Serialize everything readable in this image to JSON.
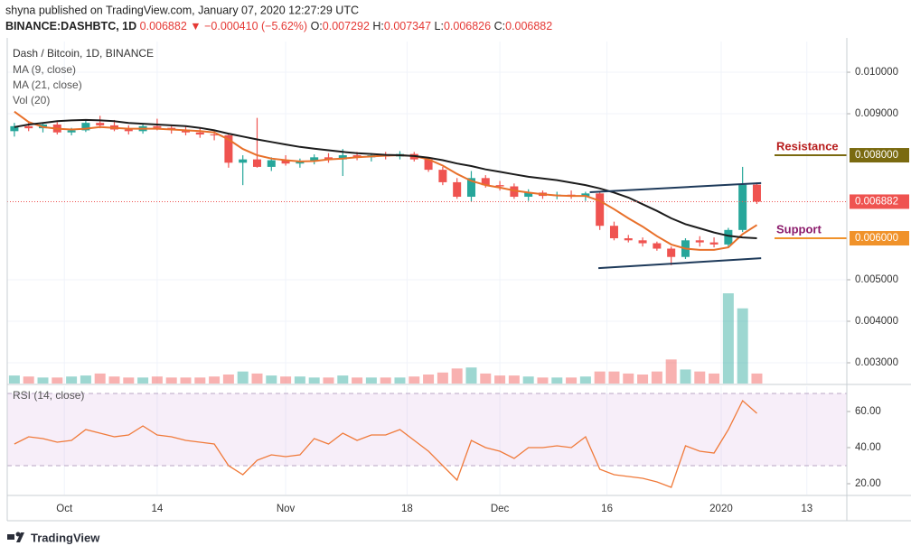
{
  "header": {
    "publisher": "shyna published on TradingView.com, January 07, 2020 12:27:29 UTC",
    "symbol": "BINANCE:DASHBTC, 1D",
    "quote": "0.006882 ▼ −0.000410 (−5.62%)",
    "ohlc": [
      [
        "O:",
        "0.007292"
      ],
      [
        "H:",
        "0.007347"
      ],
      [
        "L:",
        "0.006826"
      ],
      [
        "C:",
        "0.006882"
      ]
    ]
  },
  "footer": "TradingView",
  "chart_data": {
    "type": "candlestick",
    "title": "Dash / Bitcoin, 1D, BINANCE",
    "up_color": "#26a69a",
    "down_color": "#ef5350",
    "open": [
      0.00858,
      0.0087,
      0.00865,
      0.00874,
      0.00855,
      0.0086,
      0.00878,
      0.00872,
      0.00862,
      0.00858,
      0.0087,
      0.00866,
      0.00862,
      0.00855,
      0.0085,
      0.00848,
      0.00782,
      0.0079,
      0.00772,
      0.00788,
      0.0078,
      0.00785,
      0.00795,
      0.0079,
      0.008,
      0.00795,
      0.008,
      0.00797,
      0.00803,
      0.0079,
      0.00765,
      0.00735,
      0.007,
      0.00745,
      0.00728,
      0.00725,
      0.007,
      0.0071,
      0.00702,
      0.00705,
      0.007,
      0.00708,
      0.0063,
      0.006,
      0.00595,
      0.00588,
      0.00575,
      0.00555,
      0.00595,
      0.0059,
      0.00585,
      0.0062,
      0.007292
    ],
    "high": [
      0.00878,
      0.0088,
      0.00878,
      0.0088,
      0.00866,
      0.00885,
      0.00895,
      0.00885,
      0.00872,
      0.00875,
      0.00888,
      0.00874,
      0.0087,
      0.00864,
      0.00858,
      0.00852,
      0.008,
      0.0089,
      0.00795,
      0.008,
      0.00792,
      0.00802,
      0.00805,
      0.00815,
      0.00808,
      0.00805,
      0.00808,
      0.0081,
      0.00808,
      0.00795,
      0.00772,
      0.00745,
      0.00762,
      0.00752,
      0.00738,
      0.00732,
      0.00718,
      0.00715,
      0.00712,
      0.00715,
      0.00712,
      0.00712,
      0.0064,
      0.00608,
      0.00602,
      0.00592,
      0.0058,
      0.006,
      0.00605,
      0.00602,
      0.00625,
      0.00772,
      0.007347
    ],
    "low": [
      0.00845,
      0.00858,
      0.00855,
      0.0085,
      0.00848,
      0.00856,
      0.00865,
      0.00858,
      0.0085,
      0.00852,
      0.0086,
      0.00852,
      0.00848,
      0.00842,
      0.00836,
      0.0077,
      0.00728,
      0.0077,
      0.00762,
      0.00775,
      0.0077,
      0.00778,
      0.00782,
      0.0075,
      0.00788,
      0.00785,
      0.0079,
      0.0079,
      0.00785,
      0.0076,
      0.00728,
      0.00695,
      0.00688,
      0.00722,
      0.00715,
      0.00695,
      0.0069,
      0.00695,
      0.00694,
      0.00695,
      0.0069,
      0.0062,
      0.00595,
      0.0059,
      0.0058,
      0.0057,
      0.00535,
      0.0055,
      0.0058,
      0.00578,
      0.0058,
      0.00615,
      0.006826
    ],
    "close": [
      0.0087,
      0.00865,
      0.00874,
      0.00855,
      0.0086,
      0.00878,
      0.00872,
      0.00862,
      0.00858,
      0.0087,
      0.00866,
      0.00862,
      0.00855,
      0.0085,
      0.00848,
      0.00782,
      0.0079,
      0.00772,
      0.00788,
      0.0078,
      0.00785,
      0.00795,
      0.0079,
      0.008,
      0.00795,
      0.008,
      0.00797,
      0.00803,
      0.0079,
      0.00765,
      0.00735,
      0.007,
      0.00745,
      0.00728,
      0.00725,
      0.007,
      0.0071,
      0.00702,
      0.00705,
      0.007,
      0.00708,
      0.0063,
      0.006,
      0.00595,
      0.00588,
      0.00575,
      0.00555,
      0.00595,
      0.0059,
      0.00585,
      0.0062,
      0.00729,
      0.006882
    ],
    "series": [
      {
        "name": "MA (9, close)",
        "color": "#e8702a",
        "values": [
          0.00905,
          0.0088,
          0.00868,
          0.00864,
          0.00862,
          0.00864,
          0.00868,
          0.00866,
          0.00864,
          0.00864,
          0.00864,
          0.00862,
          0.0086,
          0.00858,
          0.00855,
          0.00838,
          0.00815,
          0.008,
          0.00792,
          0.00788,
          0.00785,
          0.00786,
          0.0079,
          0.00792,
          0.00795,
          0.00797,
          0.00799,
          0.008,
          0.00798,
          0.0079,
          0.00775,
          0.00755,
          0.00738,
          0.00728,
          0.00722,
          0.00715,
          0.0071,
          0.00706,
          0.00703,
          0.00702,
          0.00702,
          0.0069,
          0.0067,
          0.00648,
          0.00628,
          0.00605,
          0.00585,
          0.00575,
          0.00572,
          0.00572,
          0.00578,
          0.0061,
          0.00632
        ]
      },
      {
        "name": "MA (21, close)",
        "color": "#1c1c1c",
        "values": [
          0.00868,
          0.00874,
          0.00878,
          0.00882,
          0.00884,
          0.00885,
          0.00884,
          0.00882,
          0.00878,
          0.00876,
          0.00874,
          0.00872,
          0.0087,
          0.00866,
          0.0086,
          0.00852,
          0.00845,
          0.00838,
          0.00832,
          0.00826,
          0.0082,
          0.00816,
          0.00812,
          0.00808,
          0.00805,
          0.00803,
          0.00801,
          0.008,
          0.00798,
          0.00794,
          0.00788,
          0.0078,
          0.00774,
          0.00766,
          0.0076,
          0.00754,
          0.00748,
          0.00744,
          0.0074,
          0.00734,
          0.00728,
          0.0072,
          0.0071,
          0.00698,
          0.00682,
          0.00666,
          0.00648,
          0.00634,
          0.00624,
          0.00614,
          0.00606,
          0.00602,
          0.006
        ]
      }
    ],
    "volume": {
      "name": "Vol (20)",
      "values": [
        8,
        7,
        6,
        6,
        7,
        8,
        10,
        7,
        6,
        6,
        7,
        6,
        6,
        6,
        7,
        9,
        12,
        10,
        8,
        7,
        7,
        6,
        6,
        8,
        6,
        6,
        6,
        6,
        7,
        9,
        11,
        15,
        16,
        10,
        8,
        8,
        7,
        6,
        6,
        6,
        7,
        12,
        12,
        10,
        9,
        12,
        24,
        14,
        12,
        10,
        90,
        75,
        10
      ]
    },
    "xlim": [
      -0.5,
      58.3
    ],
    "xticks": [
      {
        "value": 3.5,
        "label": "Oct"
      },
      {
        "value": 10,
        "label": "14"
      },
      {
        "value": 19,
        "label": "Nov"
      },
      {
        "value": 27.5,
        "label": "18"
      },
      {
        "value": 34,
        "label": "Dec"
      },
      {
        "value": 41.5,
        "label": "16"
      },
      {
        "value": 49.5,
        "label": "2020"
      },
      {
        "value": 55.5,
        "label": "13"
      }
    ],
    "ylim": [
      0.0025,
      0.01074
    ],
    "yticks": [
      {
        "value": 0.01,
        "label": "0.010000"
      },
      {
        "value": 0.009,
        "label": "0.009000"
      },
      {
        "value": 0.005,
        "label": "0.005000"
      },
      {
        "value": 0.004,
        "label": "0.004000"
      },
      {
        "value": 0.003,
        "label": "0.003000"
      }
    ],
    "grid": true,
    "last_price": 0.006882,
    "last_price_color": "#ef5350",
    "levels": [
      {
        "name": "Resistance",
        "value": 0.008,
        "label": "0.008000",
        "color": "#7a6a10",
        "text_color": "#b71c1c"
      },
      {
        "name": "Support",
        "value": 0.006,
        "label": "0.006000",
        "color": "#f0922a",
        "text_color": "#8b1a6b"
      }
    ],
    "trendlines": [
      {
        "color": "#1e3a5a",
        "x": [
          40.3,
          52.3
        ],
        "y": [
          0.00711,
          0.00733
        ]
      },
      {
        "color": "#1e3a5a",
        "x": [
          40.9,
          52.3
        ],
        "y": [
          0.00528,
          0.00552
        ]
      }
    ],
    "rsi": {
      "name": "RSI (14, close)",
      "color": "#f07a3a",
      "values": [
        42,
        46,
        45,
        43,
        44,
        50,
        48,
        46,
        47,
        52,
        47,
        46,
        44,
        43,
        42,
        30,
        25,
        33,
        36,
        35,
        36,
        45,
        42,
        48,
        44,
        47,
        47,
        50,
        44,
        38,
        30,
        22,
        44,
        40,
        38,
        34,
        40,
        40,
        41,
        40,
        46,
        28,
        25,
        24,
        23,
        21,
        18,
        41,
        38,
        37,
        50,
        66,
        59
      ],
      "ylim": [
        14,
        74
      ],
      "yticks": [
        {
          "value": 60,
          "label": "60.00"
        },
        {
          "value": 40,
          "label": "40.00"
        },
        {
          "value": 20,
          "label": "20.00"
        }
      ],
      "bands": [
        30,
        70
      ]
    }
  }
}
